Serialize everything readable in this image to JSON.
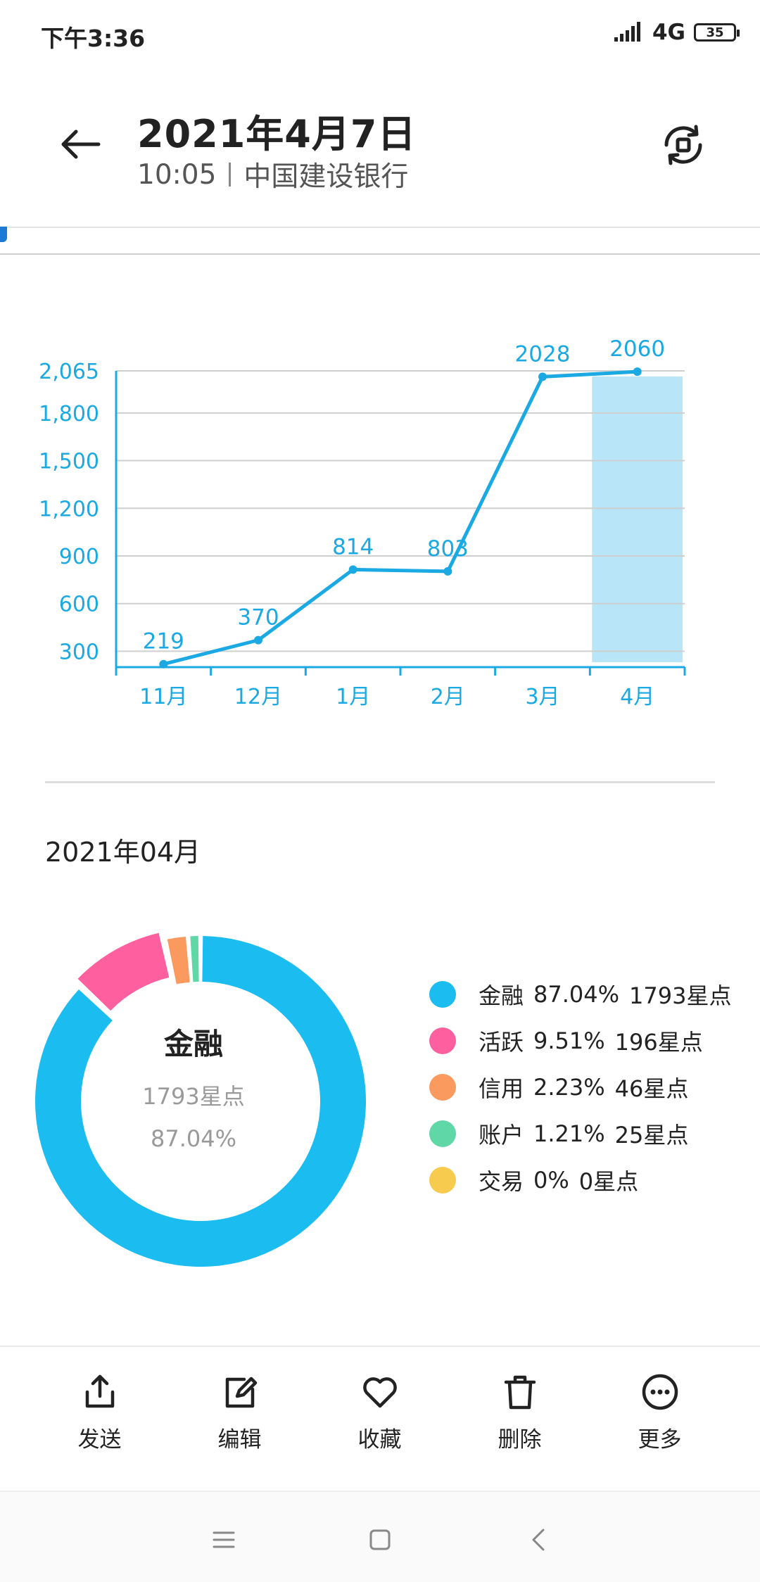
{
  "status": {
    "time": "下午3:36",
    "network": "4G",
    "battery": "35"
  },
  "header": {
    "date": "2021年4月7日",
    "time": "10:05",
    "bank": "中国建设银行"
  },
  "chart_data": {
    "type": "line",
    "categories": [
      "11月",
      "12月",
      "1月",
      "2月",
      "3月",
      "4月"
    ],
    "values": [
      219,
      370,
      814,
      803,
      2028,
      2060
    ],
    "data_labels": [
      "219",
      "370",
      "814",
      "803",
      "2028",
      "2060"
    ],
    "y_ticks": [
      300,
      600,
      900,
      1200,
      1500,
      1800,
      2065
    ],
    "y_tick_labels": [
      "300",
      "600",
      "900",
      "1,200",
      "1,500",
      "1,800",
      "2,065"
    ],
    "ylim": [
      200,
      2065
    ],
    "highlight_category": "4月",
    "grid": true,
    "colors": {
      "line": "#1aa9e3",
      "highlight": "#b8e6f8",
      "axis": "#1aa9e3"
    }
  },
  "month_label": "2021年04月",
  "donut": {
    "center_name": "金融",
    "center_points": "1793星点",
    "center_percent": "87.04%",
    "segments": [
      {
        "name": "金融",
        "percent_text": "87.04%",
        "points_text": "1793星点",
        "value": 87.04,
        "color": "#1bbcf0"
      },
      {
        "name": "活跃",
        "percent_text": "9.51%",
        "points_text": "196星点",
        "value": 9.51,
        "color": "#fe5f9e"
      },
      {
        "name": "信用",
        "percent_text": "2.23%",
        "points_text": "46星点",
        "value": 2.23,
        "color": "#fb9a5f"
      },
      {
        "name": "账户",
        "percent_text": "1.21%",
        "points_text": "25星点",
        "value": 1.21,
        "color": "#5fd7a6"
      },
      {
        "name": "交易",
        "percent_text": "0%",
        "points_text": "0星点",
        "value": 0,
        "color": "#f7cb4d"
      }
    ]
  },
  "toolbar": [
    {
      "label": "发送",
      "icon": "share-icon"
    },
    {
      "label": "编辑",
      "icon": "edit-icon"
    },
    {
      "label": "收藏",
      "icon": "heart-icon"
    },
    {
      "label": "删除",
      "icon": "trash-icon"
    },
    {
      "label": "更多",
      "icon": "more-icon"
    }
  ]
}
